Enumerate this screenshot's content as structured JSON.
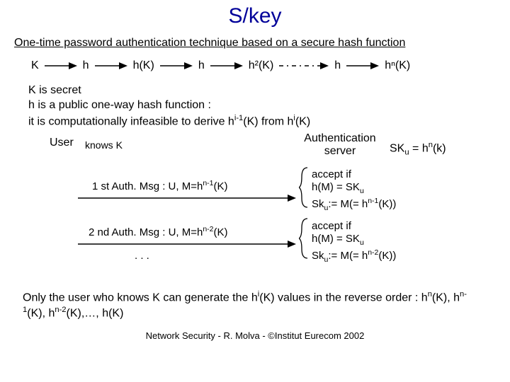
{
  "title": "S/key",
  "title_color": "#000099",
  "subtitle": "One-time password authentication technique based on a secure hash function",
  "chain": {
    "items": [
      "K",
      "h",
      "h(K)",
      "h",
      "h²(K)",
      "h",
      "hⁿ(K)"
    ],
    "arrow_color": "#000000",
    "dash_arrow_after_index": 4
  },
  "explain": {
    "l1": "K is secret",
    "l2": "h is a public one-way hash function :",
    "l3_a": "it is computationally infeasible to derive h",
    "l3_sup1": "i-1",
    "l3_b": "(K) from h",
    "l3_sup2": "i",
    "l3_c": "(K)"
  },
  "user_label": "User",
  "knows_label": "knows K",
  "auth_label_l1": "Authentication",
  "auth_label_l2": "server",
  "sk_eq_a": "SK",
  "sk_eq_sub": "u",
  "sk_eq_b": " = h",
  "sk_eq_sup": "n",
  "sk_eq_c": "(k)",
  "msg1_a": "1 st Auth. Msg : U, M=h",
  "msg1_sup": "n-1",
  "msg1_b": "(K)",
  "msg2_a": "2 nd Auth. Msg : U, M=h",
  "msg2_sup": "n-2",
  "msg2_b": "(K)",
  "dots": ". . .",
  "accept1": {
    "l1": "accept if",
    "l2a": "h(M) = SK",
    "l2sub": "u",
    "l3a": "Sk",
    "l3sub": "u",
    "l3b": ":= M(= h",
    "l3sup": "n-1",
    "l3c": "(K))"
  },
  "accept2": {
    "l1": "accept if",
    "l2a": "h(M) = SK",
    "l2sub": "u",
    "l3a": "Sk",
    "l3sub": "u",
    "l3b": ":= M(= h",
    "l3sup": "n-2",
    "l3c": "(K))"
  },
  "conclusion_a": "Only the user who knows K can generate the h",
  "conclusion_sup": "i",
  "conclusion_b": "(K) values in the reverse order :   h",
  "conclusion_s1": "n",
  "conclusion_c": "(K), h",
  "conclusion_s2": "n-1",
  "conclusion_d": "(K), h",
  "conclusion_s3": "n-2",
  "conclusion_e": "(K),…, h(K)",
  "footer": "Network Security - R. Molva - ©Institut Eurecom 2002",
  "arrow_len_solid": 46,
  "arrow_len_long": 300,
  "brace_height1": 56,
  "brace_height2": 56
}
